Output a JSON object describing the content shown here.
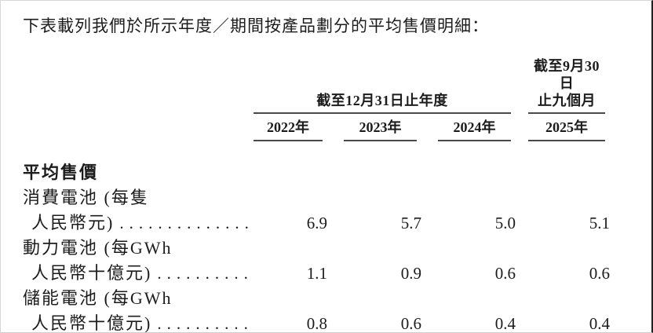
{
  "intro": {
    "text": "下表載列我們於所示年度／期間按產品劃分的平均售價明細："
  },
  "table": {
    "header": {
      "year_group_label": "截至12月31日止年度",
      "period_group_line1": "截至9月30日",
      "period_group_line2": "止九個月",
      "columns": [
        "2022年",
        "2023年",
        "2024年",
        "2025年"
      ]
    },
    "section_title": "平均售價",
    "rows": [
      {
        "product": "消費電池 (每隻",
        "unit": "人民幣元)",
        "leader": "..............",
        "values": [
          "6.9",
          "5.7",
          "5.0",
          "5.1"
        ]
      },
      {
        "product": "動力電池 (每GWh",
        "unit": "人民幣十億元)",
        "leader": "..........",
        "values": [
          "1.1",
          "0.9",
          "0.6",
          "0.6"
        ]
      },
      {
        "product": "儲能電池 (每GWh",
        "unit": "人民幣十億元)",
        "leader": "..........",
        "values": [
          "0.8",
          "0.6",
          "0.4",
          "0.4"
        ]
      }
    ]
  },
  "colors": {
    "text": "#1c1c1c",
    "rule": "#4a4a4a",
    "page_right_border": "#222222"
  }
}
